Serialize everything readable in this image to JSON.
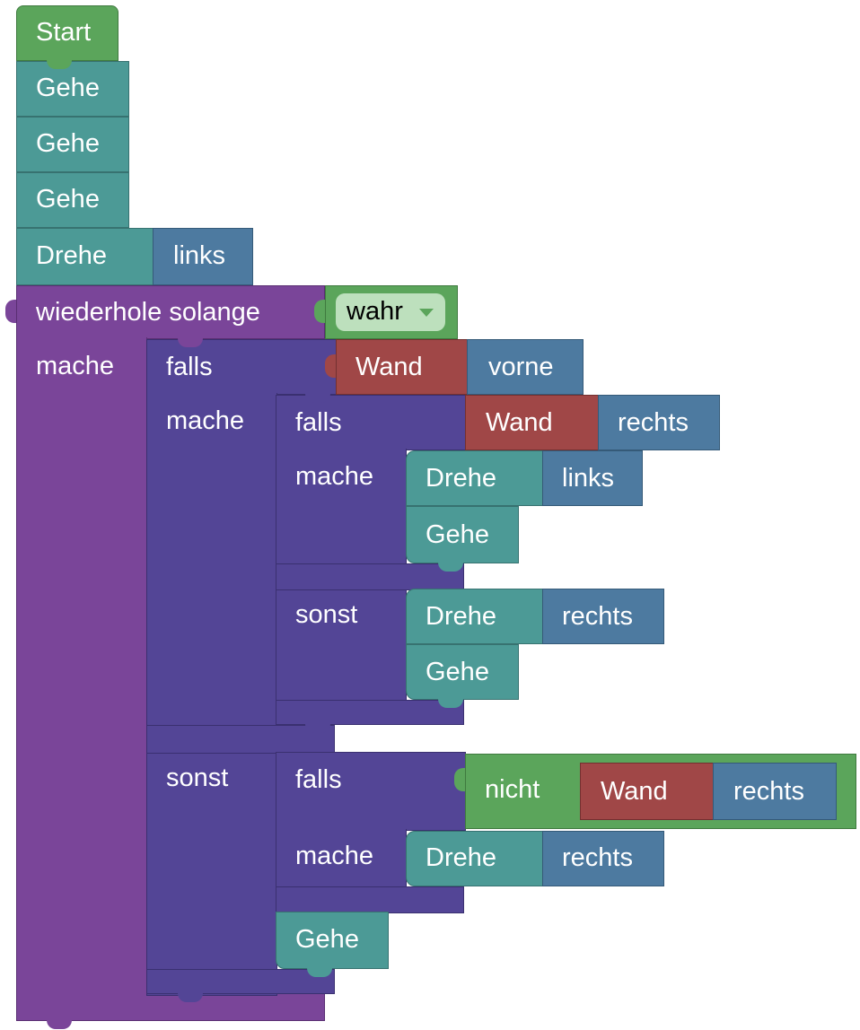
{
  "blocks": {
    "start": "Start",
    "gehe": "Gehe",
    "drehe": "Drehe",
    "links": "links",
    "rechts": "rechts",
    "vorne": "vorne",
    "wand": "Wand",
    "nicht": "nicht",
    "falls": "falls",
    "mache": "mache",
    "sonst": "sonst",
    "wiederhole_solange": "wiederhole solange",
    "wahr": "wahr"
  },
  "colors": {
    "event": "#5ba55b",
    "action": "#4c9a96",
    "direction": "#4d7aa0",
    "loop": "#7a4599",
    "if": "#534596",
    "sensor": "#a04747",
    "logic": "#5ba55b"
  },
  "icons": {
    "dropdown": "triangle-down-icon"
  }
}
